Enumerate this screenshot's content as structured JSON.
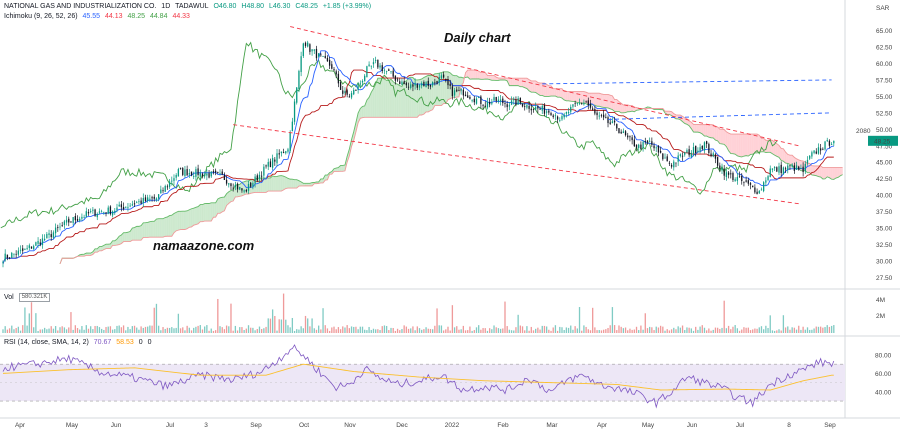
{
  "legend": {
    "symbol": "NATIONAL GAS AND INDUSTRIALIZATION CO.",
    "interval": "1D",
    "exchange": "TADAWUL",
    "open": "O46.80",
    "high": "H48.80",
    "low": "L46.30",
    "close": "C48.25",
    "change": "+1.85 (+3.99%)",
    "ichimoku": {
      "label": "Ichimoku (9, 26, 52, 26)",
      "conversion": "45.55",
      "base": "44.13",
      "lagging": "48.25",
      "span_a": "44.84",
      "span_b": "44.33"
    },
    "vol": {
      "label": "Vol",
      "value": "580.321K"
    },
    "rsi": {
      "label": "RSI (14, close, SMA, 14, 2)",
      "rsi": "70.67",
      "ma": "58.53",
      "extra": "0",
      "extra2": "0"
    }
  },
  "annotations": {
    "title": "Daily chart",
    "watermark": "namaazone.com",
    "price_label": "2080",
    "currency": "SAR"
  },
  "colors": {
    "up": "#089981",
    "down": "#131722",
    "conversion": "#2962ff",
    "base": "#b71c1c",
    "lagging": "#43a047",
    "cloud_bull": "#c8e6c9",
    "cloud_bear": "#ffcdd2",
    "trend_red": "#f23645",
    "trend_blue": "#2962ff",
    "rsi_line": "#7e57c2",
    "rsi_ma": "#fbc02d",
    "rsi_band": "#ede7f6"
  },
  "chart_data": {
    "type": "candlestick",
    "price_axis": {
      "ticks": [
        "65.00",
        "62.50",
        "60.00",
        "57.50",
        "55.00",
        "52.50",
        "50.00",
        "47.50",
        "45.00",
        "42.50",
        "40.00",
        "37.50",
        "35.00",
        "32.50",
        "30.00",
        "27.50"
      ],
      "current": "48.25",
      "range": [
        26.2,
        66.6
      ]
    },
    "x_axis": [
      "Apr",
      "May",
      "Jun",
      "Jul",
      "3",
      "Sep",
      "Oct",
      "Nov",
      "Dec",
      "2022",
      "Feb",
      "Mar",
      "Apr",
      "May",
      "Jun",
      "Jul",
      "8",
      "Sep"
    ],
    "close_path": [
      [
        0,
        30.5
      ],
      [
        10,
        31.6
      ],
      [
        20,
        33.6
      ],
      [
        30,
        36.0
      ],
      [
        40,
        37.3
      ],
      [
        50,
        37.7
      ],
      [
        60,
        38.8
      ],
      [
        70,
        39.5
      ],
      [
        80,
        43.6
      ],
      [
        90,
        43.3
      ],
      [
        100,
        42.8
      ],
      [
        110,
        40.5
      ],
      [
        120,
        44.2
      ],
      [
        126,
        46.1
      ],
      [
        130,
        47.3
      ],
      [
        134,
        56.1
      ],
      [
        137,
        63.6
      ],
      [
        140,
        62.2
      ],
      [
        145,
        60.8
      ],
      [
        150,
        59.5
      ],
      [
        155,
        55.5
      ],
      [
        158,
        55.0
      ],
      [
        162,
        56.4
      ],
      [
        166,
        59.0
      ],
      [
        170,
        60.0
      ],
      [
        175,
        58.8
      ],
      [
        180,
        57.5
      ],
      [
        185,
        56.4
      ],
      [
        190,
        57.0
      ],
      [
        195,
        56.8
      ],
      [
        200,
        57.8
      ],
      [
        205,
        55.6
      ],
      [
        210,
        55.7
      ],
      [
        215,
        54.7
      ],
      [
        220,
        53.9
      ],
      [
        225,
        54.4
      ],
      [
        230,
        53.9
      ],
      [
        235,
        54.2
      ],
      [
        240,
        53.5
      ],
      [
        245,
        53.0
      ],
      [
        250,
        52.7
      ],
      [
        255,
        51.5
      ],
      [
        258,
        52.7
      ],
      [
        262,
        53.8
      ],
      [
        266,
        54.2
      ],
      [
        270,
        52.2
      ],
      [
        275,
        51.2
      ],
      [
        280,
        50.3
      ],
      [
        285,
        48.5
      ],
      [
        290,
        47.3
      ],
      [
        295,
        48.0
      ],
      [
        300,
        46.0
      ],
      [
        305,
        44.7
      ],
      [
        310,
        46.1
      ],
      [
        315,
        46.8
      ],
      [
        320,
        47.8
      ],
      [
        325,
        45.3
      ],
      [
        330,
        43.1
      ],
      [
        335,
        42.5
      ],
      [
        340,
        41.5
      ],
      [
        345,
        40.5
      ],
      [
        350,
        43.9
      ],
      [
        355,
        43.9
      ],
      [
        360,
        44.3
      ],
      [
        365,
        43.6
      ],
      [
        368,
        45.7
      ],
      [
        372,
        47.0
      ],
      [
        375,
        47.6
      ],
      [
        378,
        48.25
      ]
    ],
    "volume_axis": [
      "4M",
      "2M"
    ],
    "rsi": {
      "ticks": [
        "80.00",
        "60.00",
        "40.00"
      ],
      "band": [
        30,
        70
      ],
      "values": [
        [
          0,
          66
        ],
        [
          15,
          70
        ],
        [
          30,
          76
        ],
        [
          45,
          61
        ],
        [
          60,
          55
        ],
        [
          75,
          46
        ],
        [
          90,
          58
        ],
        [
          105,
          53
        ],
        [
          118,
          62
        ],
        [
          125,
          74
        ],
        [
          132,
          88
        ],
        [
          137,
          80
        ],
        [
          145,
          60
        ],
        [
          152,
          45
        ],
        [
          158,
          48
        ],
        [
          165,
          65
        ],
        [
          172,
          55
        ],
        [
          180,
          48
        ],
        [
          190,
          52
        ],
        [
          200,
          58
        ],
        [
          210,
          42
        ],
        [
          220,
          46
        ],
        [
          230,
          42
        ],
        [
          240,
          55
        ],
        [
          250,
          40
        ],
        [
          258,
          53
        ],
        [
          265,
          58
        ],
        [
          272,
          48
        ],
        [
          280,
          44
        ],
        [
          290,
          37
        ],
        [
          298,
          28
        ],
        [
          305,
          40
        ],
        [
          312,
          56
        ],
        [
          320,
          50
        ],
        [
          328,
          44
        ],
        [
          335,
          34
        ],
        [
          342,
          28
        ],
        [
          350,
          48
        ],
        [
          358,
          58
        ],
        [
          365,
          64
        ],
        [
          372,
          72
        ],
        [
          378,
          71
        ]
      ],
      "ma": [
        [
          0,
          60
        ],
        [
          30,
          64
        ],
        [
          60,
          66
        ],
        [
          90,
          58
        ],
        [
          120,
          58
        ],
        [
          137,
          70
        ],
        [
          160,
          62
        ],
        [
          190,
          56
        ],
        [
          220,
          52
        ],
        [
          250,
          50
        ],
        [
          280,
          48
        ],
        [
          300,
          42
        ],
        [
          330,
          43
        ],
        [
          350,
          42
        ],
        [
          365,
          52
        ],
        [
          378,
          58
        ]
      ]
    },
    "trendlines": {
      "channel_upper": [
        [
          131,
          65.6
        ],
        [
          363,
          47.5
        ]
      ],
      "channel_lower": [
        [
          105,
          50.7
        ],
        [
          363,
          38.7
        ]
      ],
      "resistance_1": [
        [
          246,
          56.9
        ],
        [
          378,
          57.5
        ]
      ],
      "resistance_2": [
        [
          276,
          51.5
        ],
        [
          378,
          52.5
        ]
      ]
    }
  }
}
